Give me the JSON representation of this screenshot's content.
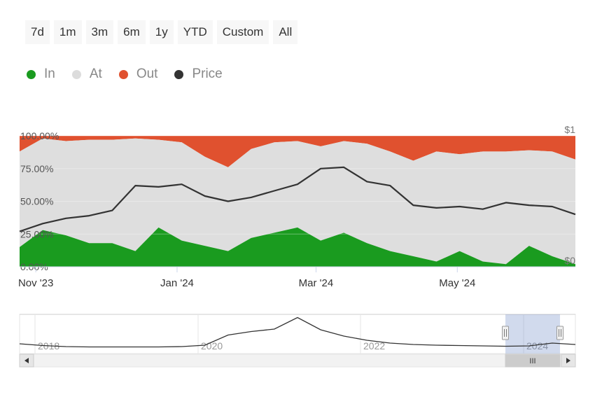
{
  "range_buttons": [
    "7d",
    "1m",
    "3m",
    "6m",
    "1y",
    "YTD",
    "Custom",
    "All"
  ],
  "legend": [
    {
      "label": "In",
      "color": "#1a9b1f"
    },
    {
      "label": "At",
      "color": "#dcdcdc"
    },
    {
      "label": "Out",
      "color": "#e0512f"
    },
    {
      "label": "Price",
      "color": "#333333"
    }
  ],
  "chart_data": {
    "type": "area",
    "stacking": "percent",
    "y_tick_labels": [
      "100.00%",
      "75.00%",
      "50.00%",
      "25.00%",
      "0.00%"
    ],
    "price_axis_labels": {
      "top": "$1",
      "bottom": "$0"
    },
    "x_tick_labels": [
      "Nov '23",
      "Jan '24",
      "Mar '24",
      "May '24"
    ],
    "dates": [
      "2023-10-25",
      "2023-11-04",
      "2023-11-14",
      "2023-11-24",
      "2023-12-04",
      "2023-12-14",
      "2023-12-24",
      "2024-01-03",
      "2024-01-13",
      "2024-01-23",
      "2024-02-02",
      "2024-02-12",
      "2024-02-22",
      "2024-03-03",
      "2024-03-13",
      "2024-03-23",
      "2024-04-02",
      "2024-04-12",
      "2024-04-22",
      "2024-05-02",
      "2024-05-12",
      "2024-05-22",
      "2024-06-01",
      "2024-06-11",
      "2024-06-21"
    ],
    "series": [
      {
        "name": "In",
        "values": [
          15,
          28,
          24,
          18,
          18,
          12,
          30,
          20,
          16,
          12,
          22,
          26,
          30,
          20,
          26,
          18,
          12,
          8,
          4,
          12,
          4,
          2,
          16,
          8,
          2
        ]
      },
      {
        "name": "At",
        "values": [
          73,
          70,
          72,
          79,
          79,
          86,
          67,
          75,
          68,
          64,
          68,
          69,
          66,
          72,
          70,
          76,
          76,
          73,
          84,
          74,
          84,
          86,
          73,
          80,
          80
        ]
      },
      {
        "name": "Out",
        "values": [
          12,
          2,
          4,
          3,
          3,
          2,
          3,
          5,
          16,
          24,
          10,
          5,
          4,
          8,
          4,
          6,
          12,
          19,
          12,
          14,
          12,
          12,
          11,
          12,
          18
        ]
      },
      {
        "name": "Price",
        "values": [
          0.27,
          0.33,
          0.37,
          0.39,
          0.43,
          0.62,
          0.61,
          0.63,
          0.54,
          0.5,
          0.53,
          0.58,
          0.63,
          0.75,
          0.76,
          0.65,
          0.62,
          0.47,
          0.45,
          0.46,
          0.44,
          0.49,
          0.47,
          0.46,
          0.4
        ]
      }
    ],
    "navigator": {
      "x_tick_labels": [
        "2018",
        "2020",
        "2022",
        "2024"
      ],
      "price_values": [
        0.2,
        0.15,
        0.12,
        0.11,
        0.11,
        0.11,
        0.11,
        0.12,
        0.16,
        0.45,
        0.55,
        0.62,
        0.95,
        0.6,
        0.42,
        0.3,
        0.22,
        0.18,
        0.16,
        0.15,
        0.14,
        0.13,
        0.14,
        0.22,
        0.18
      ],
      "selected_range": [
        "2023-10",
        "2024-06"
      ],
      "scrollbar_handle_label": "III"
    }
  }
}
